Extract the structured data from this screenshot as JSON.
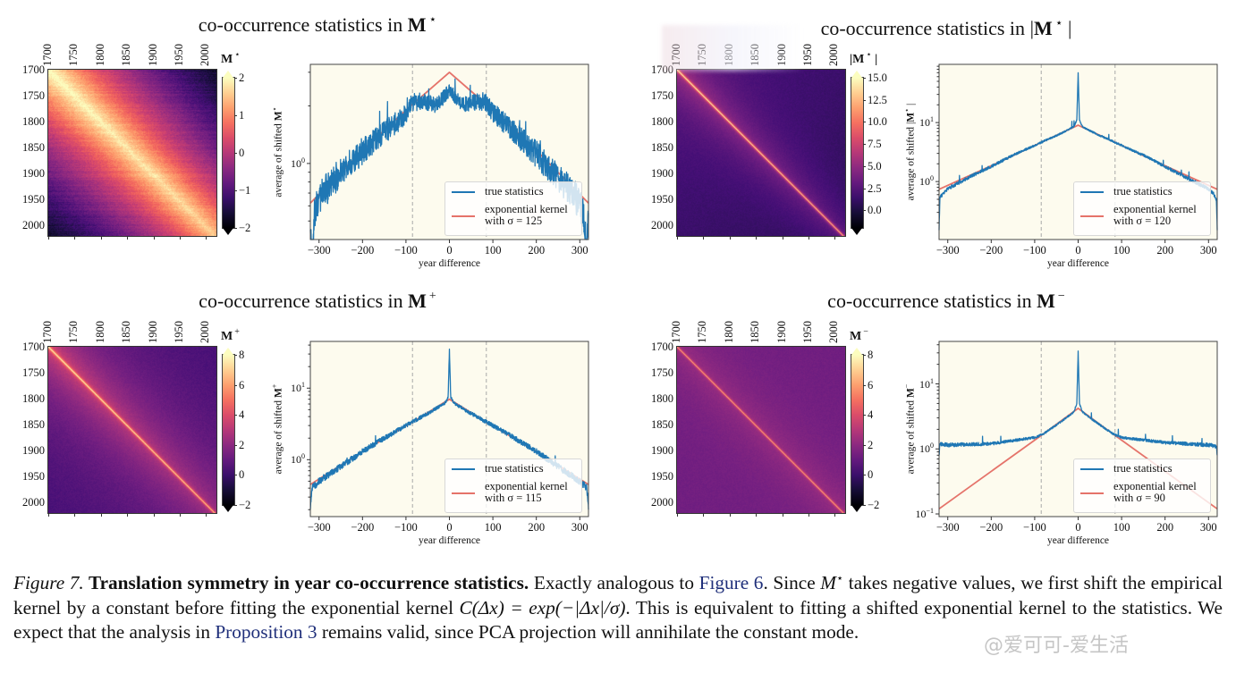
{
  "figure": {
    "panels": [
      {
        "title": "co-occurrence statistics in",
        "matrix": {
          "base": "M",
          "sup": "⋆",
          "abs": false
        }
      },
      {
        "title": "co-occurrence statistics in",
        "matrix": {
          "base": "M",
          "sup": "⋆",
          "abs": true
        }
      },
      {
        "title": "co-occurrence statistics in",
        "matrix": {
          "base": "M",
          "sup": "+",
          "abs": false
        }
      },
      {
        "title": "co-occurrence statistics in",
        "matrix": {
          "base": "M",
          "sup": "−",
          "abs": false
        }
      }
    ]
  },
  "colors": {
    "true_statistics": "#1f77b4",
    "exponential_kernel": "#e5736a",
    "axes_background": "#fdfbee",
    "link": "#1f2f7a"
  },
  "chart_data": [
    {
      "type": "heatmap",
      "panel": 0,
      "colormap": "magma",
      "x_ticks": [
        "1700",
        "1750",
        "1800",
        "1850",
        "1900",
        "1950",
        "2000"
      ],
      "y_ticks": [
        "1700",
        "1750",
        "1800",
        "1850",
        "1900",
        "1950",
        "2000"
      ],
      "year_range": [
        1700,
        2020
      ],
      "colorbar_label": {
        "base": "M",
        "sup": "⋆",
        "abs": false
      },
      "clim": [
        -2,
        2
      ],
      "colorbar_ticks": [
        "2",
        "1",
        "0",
        "−1",
        "−2"
      ],
      "colorbar_tick_values": [
        2,
        1,
        0,
        -1,
        -2
      ],
      "colorbar_extend": "both"
    },
    {
      "type": "line",
      "panel": 0,
      "xlabel": "year difference",
      "ylabel": {
        "text": "average of shifted",
        "base": "M",
        "sup": "⋆",
        "abs": false
      },
      "xlim": [
        -320,
        320
      ],
      "ylim": [
        0.4,
        3.3
      ],
      "yscale": "log",
      "x_ticks": [
        -300,
        -200,
        -100,
        0,
        100,
        200,
        300
      ],
      "x_tick_labels": [
        "−300",
        "−200",
        "−100",
        "0",
        "100",
        "200",
        "300"
      ],
      "y_ticks": [
        {
          "value": 1,
          "base": "10",
          "exp": "0"
        }
      ],
      "vlines": [
        -85,
        85
      ],
      "legend": "lower-right",
      "series": [
        {
          "name": "true statistics",
          "points": [
            [
              -320,
              0.45
            ],
            [
              -317,
              0.3
            ],
            [
              -310,
              0.55
            ],
            [
              -300,
              0.66
            ],
            [
              -250,
              0.9
            ],
            [
              -200,
              1.15
            ],
            [
              -150,
              1.45
            ],
            [
              -100,
              1.8
            ],
            [
              -85,
              2.1
            ],
            [
              -60,
              2.1
            ],
            [
              -30,
              2.02
            ],
            [
              0,
              2.4
            ],
            [
              30,
              2.02
            ],
            [
              60,
              2.1
            ],
            [
              85,
              2.1
            ],
            [
              100,
              1.85
            ],
            [
              150,
              1.45
            ],
            [
              200,
              1.12
            ],
            [
              250,
              0.85
            ],
            [
              300,
              0.62
            ],
            [
              310,
              0.5
            ],
            [
              316,
              0.35
            ],
            [
              320,
              0.55
            ]
          ]
        },
        {
          "name": "exponential kernel",
          "name_line2": "with σ = 125",
          "sigma": 125,
          "points": [
            [
              -320,
              0.62
            ],
            [
              -200,
              1.17
            ],
            [
              -100,
              1.9
            ],
            [
              0,
              3.0
            ],
            [
              100,
              1.9
            ],
            [
              200,
              1.17
            ],
            [
              320,
              0.62
            ]
          ]
        }
      ]
    },
    {
      "type": "heatmap",
      "panel": 1,
      "colormap": "magma",
      "x_ticks": [
        "1700",
        "1750",
        "1800",
        "1850",
        "1900",
        "1950",
        "2000"
      ],
      "y_ticks": [
        "1700",
        "1750",
        "1800",
        "1850",
        "1900",
        "1950",
        "2000"
      ],
      "year_range": [
        1700,
        2020
      ],
      "colorbar_label": {
        "base": "M",
        "sup": "⋆",
        "abs": true
      },
      "clim": [
        -2,
        15
      ],
      "colorbar_ticks": [
        "15.0",
        "12.5",
        "10.0",
        "7.5",
        "5.0",
        "2.5",
        "0.0"
      ],
      "colorbar_tick_values": [
        15,
        12.5,
        10,
        7.5,
        5,
        2.5,
        0
      ],
      "colorbar_extend": "both"
    },
    {
      "type": "line",
      "panel": 1,
      "xlabel": "year difference",
      "ylabel": {
        "text": "average of shifted",
        "base": "M",
        "sup": "⋆",
        "abs": true
      },
      "xlim": [
        -320,
        320
      ],
      "ylim": [
        0.104,
        97
      ],
      "yscale": "log",
      "x_ticks": [
        -300,
        -200,
        -100,
        0,
        100,
        200,
        300
      ],
      "x_tick_labels": [
        "−300",
        "−200",
        "−100",
        "0",
        "100",
        "200",
        "300"
      ],
      "y_ticks": [
        {
          "value": 10,
          "base": "10",
          "exp": "1"
        },
        {
          "value": 1,
          "base": "10",
          "exp": "0"
        }
      ],
      "vlines": [
        -85,
        85
      ],
      "legend": "lower-right",
      "series": [
        {
          "name": "true statistics",
          "points": [
            [
              -320,
              0.15
            ],
            [
              -318,
              0.55
            ],
            [
              -310,
              0.62
            ],
            [
              -300,
              0.75
            ],
            [
              -250,
              1.2
            ],
            [
              -200,
              1.8
            ],
            [
              -150,
              2.8
            ],
            [
              -100,
              4.1
            ],
            [
              -80,
              4.8
            ],
            [
              -40,
              6.5
            ],
            [
              -10,
              8.5
            ],
            [
              -3,
              11
            ],
            [
              0,
              70
            ],
            [
              3,
              11
            ],
            [
              10,
              8.5
            ],
            [
              40,
              6.5
            ],
            [
              80,
              4.8
            ],
            [
              100,
              4.1
            ],
            [
              150,
              2.8
            ],
            [
              200,
              1.8
            ],
            [
              250,
              1.15
            ],
            [
              300,
              0.75
            ],
            [
              310,
              0.65
            ],
            [
              318,
              0.5
            ],
            [
              320,
              0.15
            ]
          ]
        },
        {
          "name": "exponential kernel",
          "name_line2": "with σ = 120",
          "sigma": 120,
          "points": [
            [
              -320,
              0.74
            ],
            [
              -200,
              1.85
            ],
            [
              -80,
              4.8
            ],
            [
              0,
              9
            ],
            [
              80,
              4.8
            ],
            [
              200,
              1.85
            ],
            [
              320,
              0.74
            ]
          ]
        }
      ]
    },
    {
      "type": "heatmap",
      "panel": 2,
      "colormap": "magma",
      "x_ticks": [
        "1700",
        "1750",
        "1800",
        "1850",
        "1900",
        "1950",
        "2000"
      ],
      "y_ticks": [
        "1700",
        "1750",
        "1800",
        "1850",
        "1900",
        "1950",
        "2000"
      ],
      "year_range": [
        1700,
        2020
      ],
      "colorbar_label": {
        "base": "M",
        "sup": "+",
        "abs": false
      },
      "clim": [
        -2,
        8
      ],
      "colorbar_ticks": [
        "8",
        "6",
        "4",
        "2",
        "0",
        "−2"
      ],
      "colorbar_tick_values": [
        8,
        6,
        4,
        2,
        0,
        -2
      ],
      "colorbar_extend": "both"
    },
    {
      "type": "line",
      "panel": 2,
      "xlabel": "year difference",
      "ylabel": {
        "text": "average of shifted",
        "base": "M",
        "sup": "+",
        "abs": false
      },
      "xlim": [
        -320,
        320
      ],
      "ylim": [
        0.16,
        45
      ],
      "yscale": "log",
      "x_ticks": [
        -300,
        -200,
        -100,
        0,
        100,
        200,
        300
      ],
      "x_tick_labels": [
        "−300",
        "−200",
        "−100",
        "0",
        "100",
        "200",
        "300"
      ],
      "y_ticks": [
        {
          "value": 10,
          "base": "10",
          "exp": "1"
        },
        {
          "value": 1,
          "base": "10",
          "exp": "0"
        }
      ],
      "vlines": [
        -85,
        85
      ],
      "legend": "lower-right",
      "series": [
        {
          "name": "true statistics",
          "points": [
            [
              -320,
              0.2
            ],
            [
              -316,
              0.4
            ],
            [
              -300,
              0.5
            ],
            [
              -250,
              0.8
            ],
            [
              -200,
              1.3
            ],
            [
              -150,
              2.0
            ],
            [
              -100,
              3.0
            ],
            [
              -80,
              3.5
            ],
            [
              -40,
              4.8
            ],
            [
              -10,
              6.2
            ],
            [
              -3,
              7.5
            ],
            [
              0,
              35
            ],
            [
              3,
              7.5
            ],
            [
              10,
              6.2
            ],
            [
              40,
              4.8
            ],
            [
              80,
              3.5
            ],
            [
              100,
              3.0
            ],
            [
              150,
              2.0
            ],
            [
              200,
              1.3
            ],
            [
              250,
              0.8
            ],
            [
              300,
              0.5
            ],
            [
              316,
              0.4
            ],
            [
              320,
              0.2
            ]
          ]
        },
        {
          "name": "exponential kernel",
          "name_line2": "with σ = 115",
          "sigma": 115,
          "points": [
            [
              -320,
              0.45
            ],
            [
              -200,
              1.3
            ],
            [
              -80,
              3.5
            ],
            [
              0,
              7
            ],
            [
              80,
              3.5
            ],
            [
              200,
              1.3
            ],
            [
              320,
              0.45
            ]
          ]
        }
      ]
    },
    {
      "type": "heatmap",
      "panel": 3,
      "colormap": "magma",
      "x_ticks": [
        "1700",
        "1750",
        "1800",
        "1850",
        "1900",
        "1950",
        "2000"
      ],
      "y_ticks": [
        "1700",
        "1750",
        "1800",
        "1850",
        "1900",
        "1950",
        "2000"
      ],
      "year_range": [
        1700,
        2020
      ],
      "colorbar_label": {
        "base": "M",
        "sup": "−",
        "abs": false
      },
      "clim": [
        -2,
        8
      ],
      "colorbar_ticks": [
        "8",
        "6",
        "4",
        "2",
        "0",
        "−2"
      ],
      "colorbar_tick_values": [
        8,
        6,
        4,
        2,
        0,
        -2
      ],
      "colorbar_extend": "both"
    },
    {
      "type": "line",
      "panel": 3,
      "xlabel": "year difference",
      "ylabel": {
        "text": "average of shifted",
        "base": "M",
        "sup": "−",
        "abs": false
      },
      "xlim": [
        -320,
        320
      ],
      "ylim": [
        0.091,
        45
      ],
      "yscale": "log",
      "x_ticks": [
        -300,
        -200,
        -100,
        0,
        100,
        200,
        300
      ],
      "x_tick_labels": [
        "−300",
        "−200",
        "−100",
        "0",
        "100",
        "200",
        "300"
      ],
      "y_ticks": [
        {
          "value": 10,
          "base": "10",
          "exp": "1"
        },
        {
          "value": 1,
          "base": "10",
          "exp": "0"
        },
        {
          "value": 0.1,
          "base": "10",
          "exp": "−1"
        }
      ],
      "vlines": [
        -85,
        85
      ],
      "legend": "lower-right",
      "series": [
        {
          "name": "true statistics",
          "points": [
            [
              -320,
              0.8
            ],
            [
              -318,
              1.2
            ],
            [
              -300,
              1.15
            ],
            [
              -200,
              1.2
            ],
            [
              -100,
              1.5
            ],
            [
              -80,
              1.7
            ],
            [
              -40,
              2.6
            ],
            [
              -10,
              3.7
            ],
            [
              -3,
              5
            ],
            [
              0,
              32
            ],
            [
              3,
              5
            ],
            [
              10,
              3.7
            ],
            [
              40,
              2.6
            ],
            [
              80,
              1.7
            ],
            [
              100,
              1.5
            ],
            [
              200,
              1.25
            ],
            [
              300,
              1.15
            ],
            [
              318,
              1.1
            ],
            [
              320,
              0.8
            ]
          ]
        },
        {
          "name": "exponential kernel",
          "name_line2": "with σ = 90",
          "sigma": 90,
          "points": [
            [
              -320,
              0.12
            ],
            [
              -80,
              1.7
            ],
            [
              0,
              4.2
            ],
            [
              80,
              1.7
            ],
            [
              320,
              0.12
            ]
          ]
        }
      ]
    }
  ],
  "caption": {
    "segments": [
      {
        "style": "italic",
        "text": "Figure 7."
      },
      {
        "style": "bold",
        "text": " Translation symmetry in year co-occurrence statistics."
      },
      {
        "style": "normal",
        "text": " Exactly analogous to "
      },
      {
        "style": "link",
        "text": "Figure 6"
      },
      {
        "style": "normal",
        "text": ". Since "
      },
      {
        "style": "math",
        "text": "M"
      },
      {
        "style": "sup",
        "text": "⋆"
      },
      {
        "style": "normal",
        "text": " takes negative values, we first shift the empirical kernel by a constant before fitting the exponential kernel "
      },
      {
        "style": "math",
        "text": "C(Δx) = exp(−|Δx|/σ)"
      },
      {
        "style": "normal",
        "text": ". This is equivalent to fitting a shifted exponential kernel to the statistics. We expect that the analysis in "
      },
      {
        "style": "link",
        "text": "Proposition 3"
      },
      {
        "style": "normal",
        "text": " remains valid, since PCA projection will annihilate the constant mode."
      }
    ]
  },
  "watermark": "@爱可可-爱生活"
}
